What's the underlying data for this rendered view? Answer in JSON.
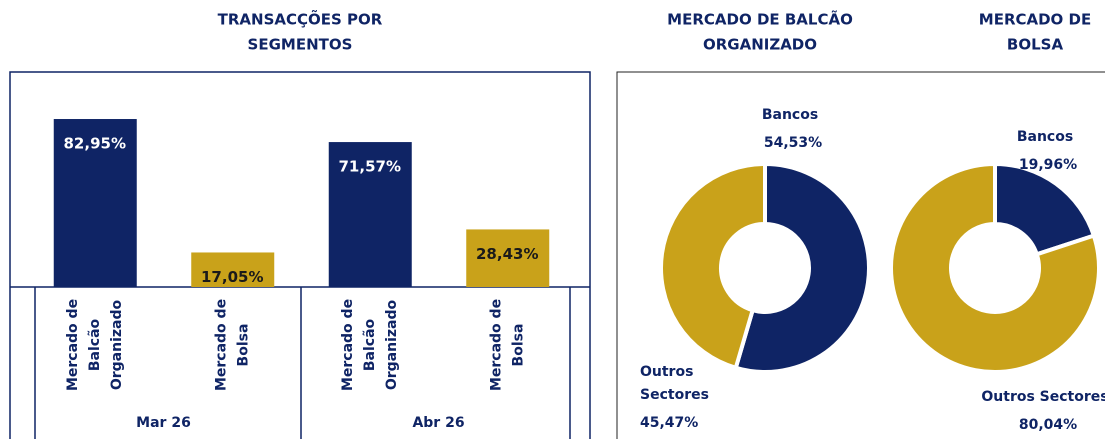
{
  "chart_data": [
    {
      "type": "bar",
      "title": [
        "TRANSACÇÕES POR",
        "SEGMENTOS"
      ],
      "ylim": [
        0,
        100
      ],
      "groups": [
        {
          "label": "Mar 26",
          "categories": [
            [
              "Mercado de",
              "Balcão",
              "Organizado"
            ],
            [
              "Mercado de",
              "Bolsa"
            ]
          ],
          "values": [
            82.95,
            17.05
          ],
          "value_labels": [
            "82,95%",
            "17,05%"
          ],
          "colors": [
            "#0f2465",
            "#c9a21a"
          ]
        },
        {
          "label": "Abr 26",
          "categories": [
            [
              "Mercado de",
              "Balcão",
              "Organizado"
            ],
            [
              "Mercado de",
              "Bolsa"
            ]
          ],
          "values": [
            71.57,
            28.43
          ],
          "value_labels": [
            "71,57%",
            "28,43%"
          ],
          "colors": [
            "#0f2465",
            "#c9a21a"
          ]
        }
      ]
    },
    {
      "type": "donut",
      "title": [
        "MERCADO DE BALCÃO",
        "ORGANIZADO"
      ],
      "categories": [
        [
          "Bancos"
        ],
        [
          "Outros",
          "Sectores"
        ]
      ],
      "values": [
        54.53,
        45.47
      ],
      "value_labels": [
        "54,53%",
        "45,47%"
      ],
      "colors": [
        "#0f2465",
        "#c9a21a"
      ]
    },
    {
      "type": "donut",
      "title": [
        "MERCADO DE",
        "BOLSA"
      ],
      "categories": [
        [
          "Bancos"
        ],
        [
          "Outros Sectores"
        ]
      ],
      "values": [
        19.96,
        80.04
      ],
      "value_labels": [
        "19,96%",
        "80,04%"
      ],
      "colors": [
        "#0f2465",
        "#c9a21a"
      ]
    }
  ]
}
